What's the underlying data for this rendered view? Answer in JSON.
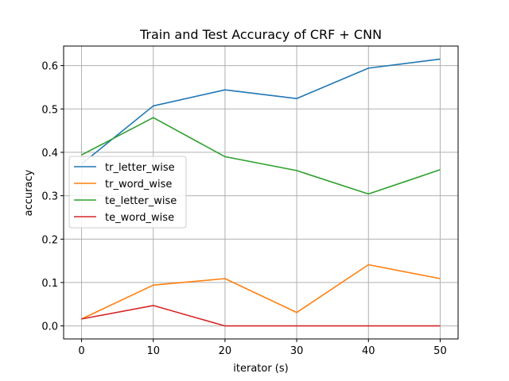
{
  "chart_data": {
    "type": "line",
    "title": "Train and Test Accuracy of CRF + CNN",
    "xlabel": "iterator (s)",
    "ylabel": "accuracy",
    "x": [
      0,
      10,
      20,
      30,
      40,
      50
    ],
    "xlim": [
      -2.5,
      52.5
    ],
    "ylim": [
      -0.03,
      0.645
    ],
    "xticks": [
      0,
      10,
      20,
      30,
      40,
      50
    ],
    "yticks": [
      0.0,
      0.1,
      0.2,
      0.3,
      0.4,
      0.5,
      0.6
    ],
    "ytick_labels": [
      "0.0",
      "0.1",
      "0.2",
      "0.3",
      "0.4",
      "0.5",
      "0.6"
    ],
    "grid": true,
    "legend_position": "center-left",
    "series": [
      {
        "name": "tr_letter_wise",
        "color": "#1f77b4",
        "values": [
          0.373,
          0.507,
          0.544,
          0.524,
          0.594,
          0.615
        ]
      },
      {
        "name": "tr_word_wise",
        "color": "#ff7f0e",
        "values": [
          0.016,
          0.094,
          0.109,
          0.031,
          0.141,
          0.109
        ]
      },
      {
        "name": "te_letter_wise",
        "color": "#2ca02c",
        "values": [
          0.394,
          0.48,
          0.39,
          0.358,
          0.304,
          0.36
        ]
      },
      {
        "name": "te_word_wise",
        "color": "#d62728",
        "values": [
          0.016,
          0.047,
          0.0,
          0.0,
          0.0,
          0.0
        ]
      }
    ]
  }
}
